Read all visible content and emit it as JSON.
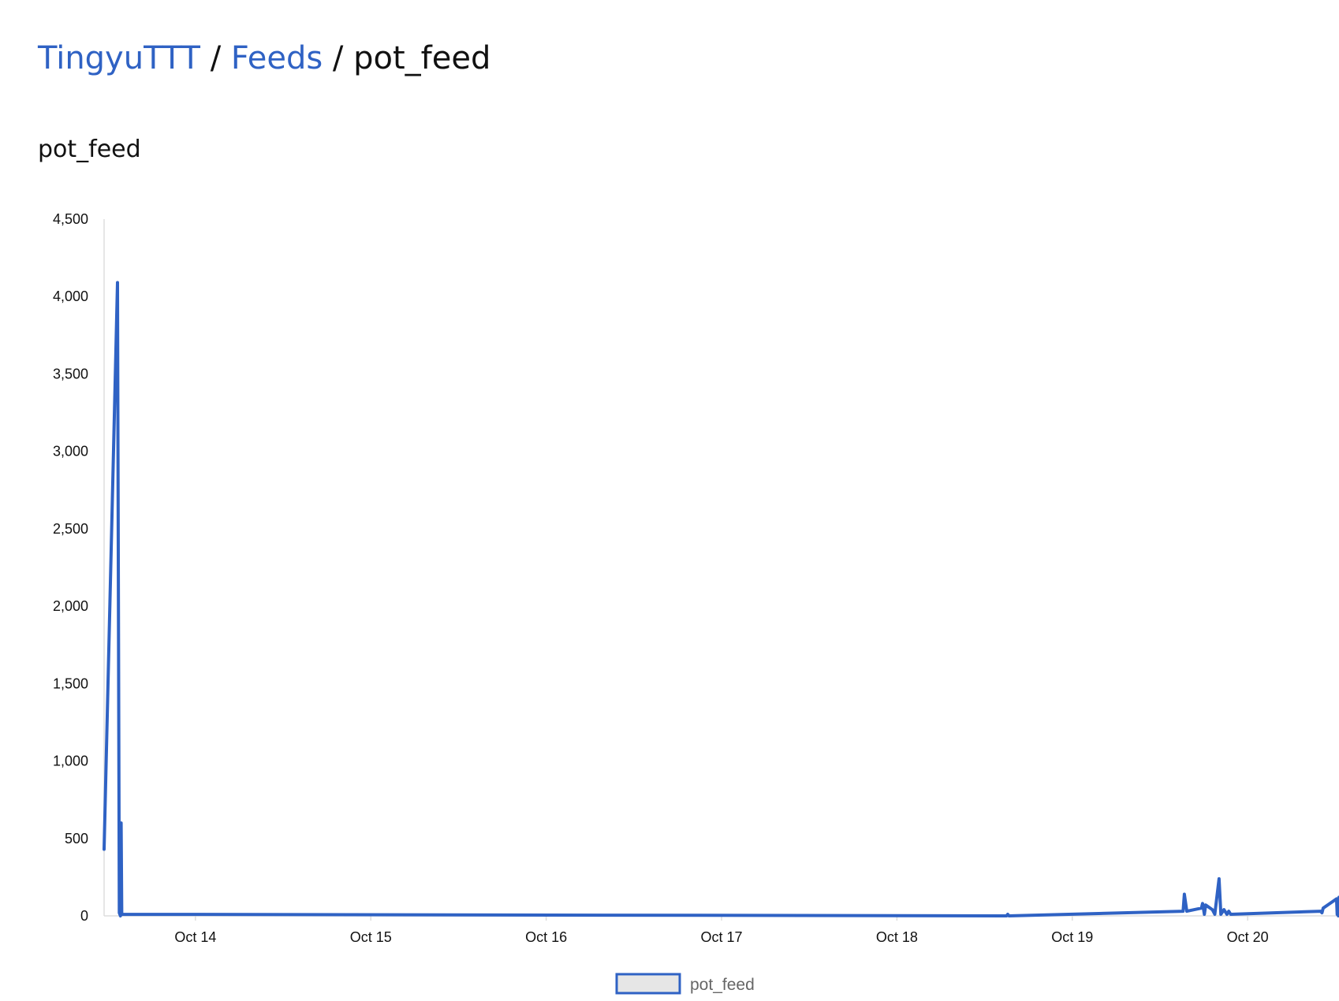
{
  "breadcrumb": {
    "owner": "TingyuTTT",
    "separator": "/",
    "section": "Feeds",
    "current": "pot_feed"
  },
  "chart_title": "pot_feed",
  "colors": {
    "link": "#2f62c4",
    "series": "#2f62c4",
    "legend_fill": "#e6e6e6",
    "axis": "#dddddd"
  },
  "chart_data": {
    "type": "line",
    "title": "pot_feed",
    "xlabel": "",
    "ylabel": "",
    "ylim": [
      0,
      4500
    ],
    "yticks": [
      0,
      500,
      1000,
      1500,
      2000,
      2500,
      3000,
      3500,
      4000,
      4500
    ],
    "ytick_labels": [
      "0",
      "500",
      "1,000",
      "1,500",
      "2,000",
      "2,500",
      "3,000",
      "3,500",
      "4,000",
      "4,500"
    ],
    "xlim": [
      "2024-10-13 11:30",
      "2024-10-20 12:30"
    ],
    "xticks": [
      "2024-10-14 00:00",
      "2024-10-15 00:00",
      "2024-10-16 00:00",
      "2024-10-17 00:00",
      "2024-10-18 00:00",
      "2024-10-19 00:00",
      "2024-10-20 00:00"
    ],
    "xtick_labels": [
      "Oct 14",
      "Oct 15",
      "Oct 16",
      "Oct 17",
      "Oct 18",
      "Oct 19",
      "Oct 20"
    ],
    "grid": false,
    "legend": "bottom-center",
    "series": [
      {
        "name": "pot_feed",
        "color": "#2f62c4",
        "points": [
          [
            "2024-10-13 11:30",
            430
          ],
          [
            "2024-10-13 13:20",
            4090
          ],
          [
            "2024-10-13 13:35",
            20
          ],
          [
            "2024-10-13 13:45",
            0
          ],
          [
            "2024-10-13 13:50",
            600
          ],
          [
            "2024-10-13 13:55",
            10
          ],
          [
            "2024-10-18 15:00",
            0
          ],
          [
            "2024-10-18 15:10",
            10
          ],
          [
            "2024-10-18 15:20",
            0
          ],
          [
            "2024-10-19 15:10",
            30
          ],
          [
            "2024-10-19 15:20",
            140
          ],
          [
            "2024-10-19 15:40",
            30
          ],
          [
            "2024-10-19 17:40",
            50
          ],
          [
            "2024-10-19 17:50",
            80
          ],
          [
            "2024-10-19 18:05",
            10
          ],
          [
            "2024-10-19 18:15",
            70
          ],
          [
            "2024-10-19 19:10",
            40
          ],
          [
            "2024-10-19 19:30",
            10
          ],
          [
            "2024-10-19 20:05",
            240
          ],
          [
            "2024-10-19 20:20",
            10
          ],
          [
            "2024-10-19 20:45",
            40
          ],
          [
            "2024-10-19 21:10",
            10
          ],
          [
            "2024-10-19 21:25",
            30
          ],
          [
            "2024-10-19 21:40",
            10
          ],
          [
            "2024-10-20 10:00",
            30
          ],
          [
            "2024-10-20 10:10",
            20
          ],
          [
            "2024-10-20 10:20",
            50
          ],
          [
            "2024-10-20 12:10",
            110
          ],
          [
            "2024-10-20 12:15",
            10
          ],
          [
            "2024-10-20 12:20",
            90
          ],
          [
            "2024-10-20 12:25",
            0
          ],
          [
            "2024-10-20 12:30",
            120
          ]
        ]
      }
    ]
  }
}
